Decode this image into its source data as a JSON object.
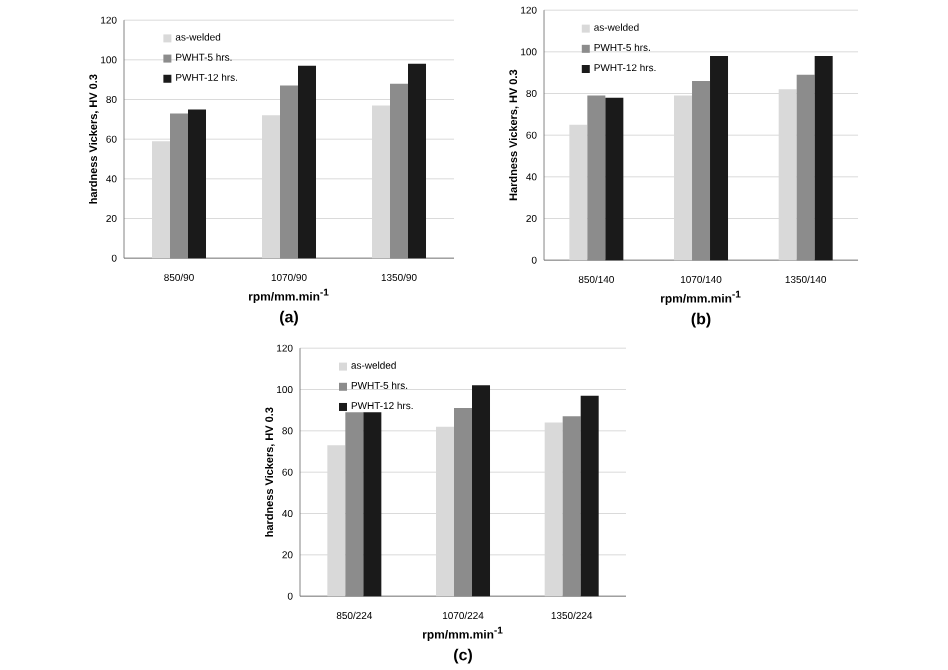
{
  "chart_data": [
    {
      "type": "bar",
      "categories": [
        "850/90",
        "1070/90",
        "1350/90"
      ],
      "xlabel": "rpm/mm.min$^{-1}$",
      "ylabel": "hardness Vickers, HV 0.3",
      "annotations": [
        "(a)"
      ],
      "ylim": [
        0,
        120
      ],
      "yticks": [
        0,
        20,
        40,
        60,
        80,
        100,
        120
      ],
      "grid": "y",
      "legend": "top left",
      "series": [
        {
          "name": "as-welded",
          "color": "#d9d9d9",
          "values": [
            59,
            72,
            77
          ]
        },
        {
          "name": "PWHT-5 hrs.",
          "color": "#8c8c8c",
          "values": [
            73,
            87,
            88
          ]
        },
        {
          "name": "PWHT-12 hrs.",
          "color": "#1a1a1a",
          "values": [
            75,
            97,
            98
          ]
        }
      ]
    },
    {
      "type": "bar",
      "categories": [
        "850/140",
        "1070/140",
        "1350/140"
      ],
      "xlabel": "rpm/mm.min$^{-1}$",
      "ylabel": "Hardness Vickers, HV 0.3",
      "annotations": [
        "(b)"
      ],
      "ylim": [
        0,
        120
      ],
      "yticks": [
        0,
        20,
        40,
        60,
        80,
        100,
        120
      ],
      "grid": "y",
      "legend": "top left",
      "series": [
        {
          "name": "as-welded",
          "color": "#d9d9d9",
          "values": [
            65,
            79,
            82
          ]
        },
        {
          "name": "PWHT-5 hrs.",
          "color": "#8c8c8c",
          "values": [
            79,
            86,
            89
          ]
        },
        {
          "name": "PWHT-12 hrs.",
          "color": "#1a1a1a",
          "values": [
            78,
            98,
            98
          ]
        }
      ]
    },
    {
      "type": "bar",
      "categories": [
        "850/224",
        "1070/224",
        "1350/224"
      ],
      "xlabel": "rpm/mm.min$^{-1}$",
      "ylabel": "hardness Vickers, HV 0.3",
      "annotations": [
        "(c)"
      ],
      "ylim": [
        0,
        120
      ],
      "yticks": [
        0,
        20,
        40,
        60,
        80,
        100,
        120
      ],
      "grid": "y",
      "legend": "top left",
      "series": [
        {
          "name": "as-welded",
          "color": "#d9d9d9",
          "values": [
            73,
            82,
            84
          ]
        },
        {
          "name": "PWHT-5 hrs.",
          "color": "#8c8c8c",
          "values": [
            89,
            91,
            87
          ]
        },
        {
          "name": "PWHT-12 hrs.",
          "color": "#1a1a1a",
          "values": [
            89,
            102,
            97
          ]
        }
      ]
    }
  ]
}
